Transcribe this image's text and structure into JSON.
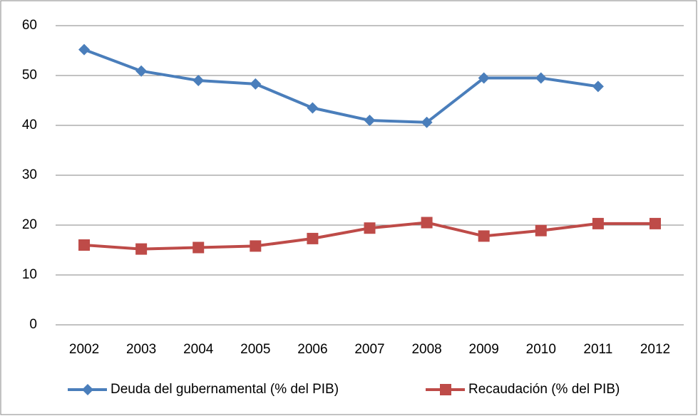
{
  "chart_data": {
    "type": "line",
    "categories": [
      "2002",
      "2003",
      "2004",
      "2005",
      "2006",
      "2007",
      "2008",
      "2009",
      "2010",
      "2011",
      "2012"
    ],
    "series": [
      {
        "name": "Deuda del gubernamental (% del PIB)",
        "color": "#4a7ebb",
        "marker": "diamond",
        "values": [
          55.2,
          50.9,
          49.0,
          48.3,
          43.5,
          41.0,
          40.6,
          49.5,
          49.5,
          47.8,
          null
        ]
      },
      {
        "name": "Recaudación (% del PIB)",
        "color": "#be4b48",
        "marker": "square",
        "values": [
          16.0,
          15.2,
          15.5,
          15.8,
          17.3,
          19.4,
          20.5,
          17.8,
          18.9,
          20.3,
          20.3
        ]
      }
    ],
    "ylim": [
      0,
      60
    ],
    "yticks": [
      0,
      10,
      20,
      30,
      40,
      50,
      60
    ],
    "grid": true,
    "legend": "bottom"
  }
}
